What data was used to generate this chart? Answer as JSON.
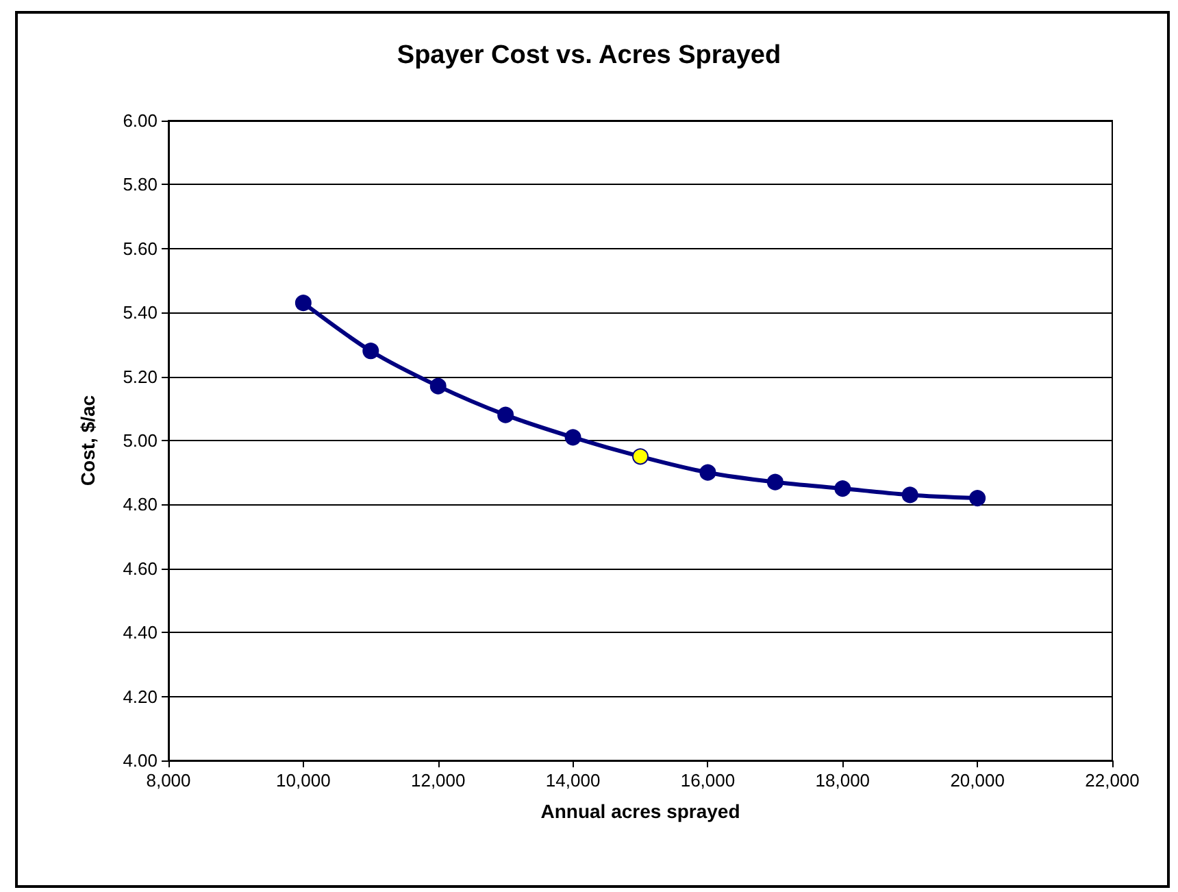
{
  "chart_data": {
    "type": "line",
    "title": "Spayer Cost vs. Acres Sprayed",
    "xlabel": "Annual acres sprayed",
    "ylabel": "Cost, $/ac",
    "x": [
      10000,
      11000,
      12000,
      13000,
      14000,
      15000,
      16000,
      17000,
      18000,
      19000,
      20000
    ],
    "series": [
      {
        "color": "#000080",
        "colors": [
          "#000080",
          "#000080",
          "#000080",
          "#000080",
          "#000080",
          "#ffff00",
          "#000080",
          "#000080",
          "#000080",
          "#000080",
          "#000080"
        ],
        "values": [
          5.43,
          5.28,
          5.17,
          5.08,
          5.01,
          4.95,
          4.9,
          4.87,
          4.85,
          4.83,
          4.82
        ]
      }
    ],
    "xlim": [
      8000,
      22000
    ],
    "xticks": [
      {
        "value": 8000,
        "label": "8,000"
      },
      {
        "value": 10000,
        "label": "10,000"
      },
      {
        "value": 12000,
        "label": "12,000"
      },
      {
        "value": 14000,
        "label": "14,000"
      },
      {
        "value": 16000,
        "label": "16,000"
      },
      {
        "value": 18000,
        "label": "18,000"
      },
      {
        "value": 20000,
        "label": "20,000"
      },
      {
        "value": 22000,
        "label": "22,000"
      }
    ],
    "ylim": [
      4,
      6
    ],
    "yticks": [
      {
        "value": 4,
        "label": "4.00"
      },
      {
        "value": 4.2,
        "label": "4.20"
      },
      {
        "value": 4.4,
        "label": "4.40"
      },
      {
        "value": 4.6,
        "label": "4.60"
      },
      {
        "value": 4.8,
        "label": "4.80"
      },
      {
        "value": 5,
        "label": "5.00"
      },
      {
        "value": 5.2,
        "label": "5.20"
      },
      {
        "value": 5.4,
        "label": "5.40"
      },
      {
        "value": 5.6,
        "label": "5.60"
      },
      {
        "value": 5.8,
        "label": "5.80"
      },
      {
        "value": 6,
        "label": "6.00"
      }
    ],
    "grid": "y",
    "marker": "circle",
    "line_style": "solid"
  }
}
